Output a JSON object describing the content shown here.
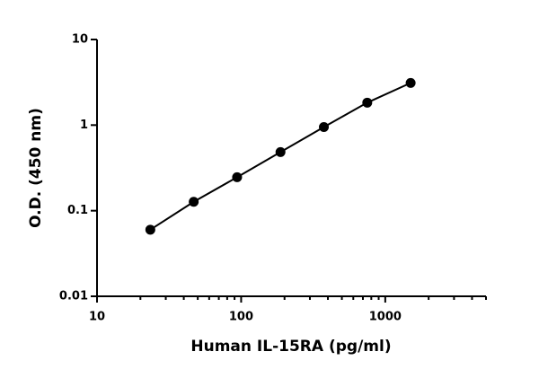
{
  "chart_data": {
    "type": "line",
    "x_label": "Human IL-15RA (pg/ml)",
    "y_label": "O.D. (450 nm)",
    "x": [
      23.4375,
      46.875,
      93.75,
      187.5,
      375,
      750,
      1500
    ],
    "values": [
      0.06,
      0.127,
      0.246,
      0.484,
      0.95,
      1.83,
      3.11
    ],
    "color": "#000000",
    "xlog": true,
    "ylog": true,
    "xlim": [
      10,
      5000
    ],
    "xticks": [
      10,
      100,
      1000
    ],
    "ylim": [
      0.01,
      10
    ],
    "yticks": [
      0.01,
      0.1,
      1,
      10
    ]
  }
}
